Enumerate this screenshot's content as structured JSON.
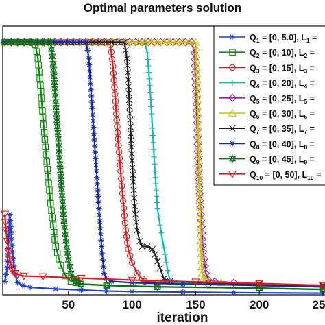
{
  "chart_data": {
    "type": "line",
    "title": "Optimal parameters solution",
    "xlabel": "iteration",
    "ylabel": "",
    "xlim": [
      0,
      250
    ],
    "ylim": [
      0,
      1.0
    ],
    "x_ticks": [
      "50",
      "100",
      "150",
      "200",
      "25"
    ],
    "grid": false,
    "legend_position": "top-right",
    "series": [
      {
        "name": "Q1 = [0, 5.0], L1 =",
        "label_parts": [
          "Q",
          "1",
          " = [0, 5.0], L",
          "1",
          " ="
        ],
        "color": "#1f3fd6",
        "marker": "star",
        "x": [
          0,
          2,
          3,
          4,
          6,
          8,
          10,
          14,
          20,
          40,
          60,
          80,
          100,
          140,
          180,
          250
        ],
        "y": [
          0.05,
          0.1,
          0.22,
          0.3,
          0.16,
          0.08,
          0.045,
          0.035,
          0.028,
          0.022,
          0.018,
          0.014,
          0.012,
          0.01,
          0.008,
          0.006
        ]
      },
      {
        "name": "Q2 = [0, 10], L2 =",
        "label_parts": [
          "Q",
          "2",
          " = [0, 10], L",
          "2",
          " ="
        ],
        "color": "#0a8a0a",
        "marker": "square",
        "x": [
          0,
          20,
          24,
          26,
          28,
          30,
          32,
          34,
          36,
          38,
          40,
          44,
          48,
          52,
          56,
          60,
          80,
          120,
          200,
          250
        ],
        "y": [
          0.94,
          0.94,
          0.93,
          0.88,
          0.78,
          0.66,
          0.55,
          0.44,
          0.34,
          0.26,
          0.18,
          0.11,
          0.07,
          0.05,
          0.045,
          0.04,
          0.035,
          0.03,
          0.025,
          0.02
        ]
      },
      {
        "name": "Q3 = [0, 15], L3 =",
        "label_parts": [
          "Q",
          "3",
          " = [0, 15], L",
          "3",
          " ="
        ],
        "color": "#e01a1a",
        "marker": "circle",
        "x": [
          0,
          80,
          83,
          85,
          87,
          89,
          91,
          93,
          95,
          97,
          100,
          104,
          108,
          110,
          120,
          160,
          200,
          250
        ],
        "y": [
          0.94,
          0.94,
          0.93,
          0.85,
          0.72,
          0.58,
          0.46,
          0.35,
          0.24,
          0.17,
          0.12,
          0.08,
          0.06,
          0.05,
          0.045,
          0.04,
          0.035,
          0.03
        ]
      },
      {
        "name": "Q4 = [0, 20], L4 =",
        "label_parts": [
          "Q",
          "4",
          " = [0, 20], L",
          "4",
          " ="
        ],
        "color": "#12b5b5",
        "marker": "plus",
        "x": [
          0,
          110,
          112,
          114,
          116,
          118,
          120,
          122,
          124,
          126,
          128,
          130,
          135,
          150,
          200,
          250
        ],
        "y": [
          0.94,
          0.94,
          0.9,
          0.78,
          0.62,
          0.46,
          0.32,
          0.26,
          0.2,
          0.15,
          0.09,
          0.05,
          0.045,
          0.04,
          0.035,
          0.03
        ]
      },
      {
        "name": "Q5 = [0, 25], L5 =",
        "label_parts": [
          "Q",
          "5",
          " = [0, 25], L",
          "5",
          " ="
        ],
        "color": "#a11aa6",
        "marker": "diamond",
        "x": [
          0,
          147,
          149,
          150,
          151,
          152,
          154,
          156,
          158,
          160,
          165,
          180,
          200,
          250
        ],
        "y": [
          0.94,
          0.94,
          0.9,
          0.78,
          0.64,
          0.48,
          0.3,
          0.16,
          0.08,
          0.055,
          0.05,
          0.045,
          0.04,
          0.035
        ]
      },
      {
        "name": "Q6 = [0, 30], L6 =",
        "label_parts": [
          "Q",
          "6",
          " = [0, 30], L",
          "6",
          " ="
        ],
        "color": "#c8c21a",
        "marker": "triangle",
        "x": [
          0,
          150,
          151,
          152,
          153,
          154,
          155,
          156,
          158,
          160,
          170,
          200,
          250
        ],
        "y": [
          0.94,
          0.94,
          0.8,
          0.6,
          0.4,
          0.2,
          0.08,
          0.06,
          0.055,
          0.05,
          0.045,
          0.04,
          0.035
        ]
      },
      {
        "name": "Q7 = [0, 35], L7 =",
        "label_parts": [
          "Q",
          "7",
          " = [0, 35], L",
          "7",
          " ="
        ],
        "color": "#202020",
        "marker": "x",
        "x": [
          0,
          94,
          96,
          97,
          98,
          99,
          100,
          101,
          102,
          104,
          106,
          108,
          112,
          116,
          118,
          122,
          125,
          130,
          160,
          200,
          250
        ],
        "y": [
          0.94,
          0.94,
          0.88,
          0.8,
          0.7,
          0.6,
          0.5,
          0.42,
          0.33,
          0.24,
          0.2,
          0.18,
          0.18,
          0.17,
          0.15,
          0.1,
          0.06,
          0.05,
          0.045,
          0.04,
          0.035
        ]
      },
      {
        "name": "Q8 = [0, 40], L8 =",
        "label_parts": [
          "Q",
          "8",
          " = [0, 40], L",
          "8",
          " ="
        ],
        "color": "#152a9c",
        "marker": "star",
        "x": [
          0,
          64,
          66,
          68,
          70,
          72,
          74,
          76,
          78,
          80,
          84,
          100,
          140,
          200,
          250
        ],
        "y": [
          0.94,
          0.94,
          0.88,
          0.74,
          0.6,
          0.46,
          0.32,
          0.18,
          0.08,
          0.06,
          0.05,
          0.045,
          0.04,
          0.035,
          0.03
        ]
      },
      {
        "name": "Q9 = [0, 45], L9 =",
        "label_parts": [
          "Q",
          "9",
          " = [0, 45], L",
          "9",
          " ="
        ],
        "color": "#0d6e1a",
        "marker": "hexagram",
        "x": [
          0,
          36,
          38,
          40,
          42,
          44,
          46,
          48,
          50,
          52,
          54,
          56,
          58,
          60,
          80,
          120,
          200,
          250
        ],
        "y": [
          0.94,
          0.94,
          0.86,
          0.72,
          0.58,
          0.44,
          0.3,
          0.2,
          0.13,
          0.08,
          0.06,
          0.05,
          0.045,
          0.04,
          0.035,
          0.03,
          0.025,
          0.02
        ]
      },
      {
        "name": "Q10 = [0, 50], L10 =",
        "label_parts": [
          "Q",
          "10",
          " = [0, 50], L",
          "10",
          " ="
        ],
        "color": "#e01a1a",
        "marker": "triangle-down",
        "x": [
          0,
          1,
          2,
          3,
          4,
          5,
          6,
          8,
          10,
          15,
          30,
          60,
          100,
          150,
          200,
          250
        ],
        "y": [
          0.3,
          0.24,
          0.2,
          0.16,
          0.13,
          0.11,
          0.09,
          0.08,
          0.075,
          0.07,
          0.068,
          0.062,
          0.055,
          0.048,
          0.042,
          0.035
        ]
      }
    ]
  }
}
